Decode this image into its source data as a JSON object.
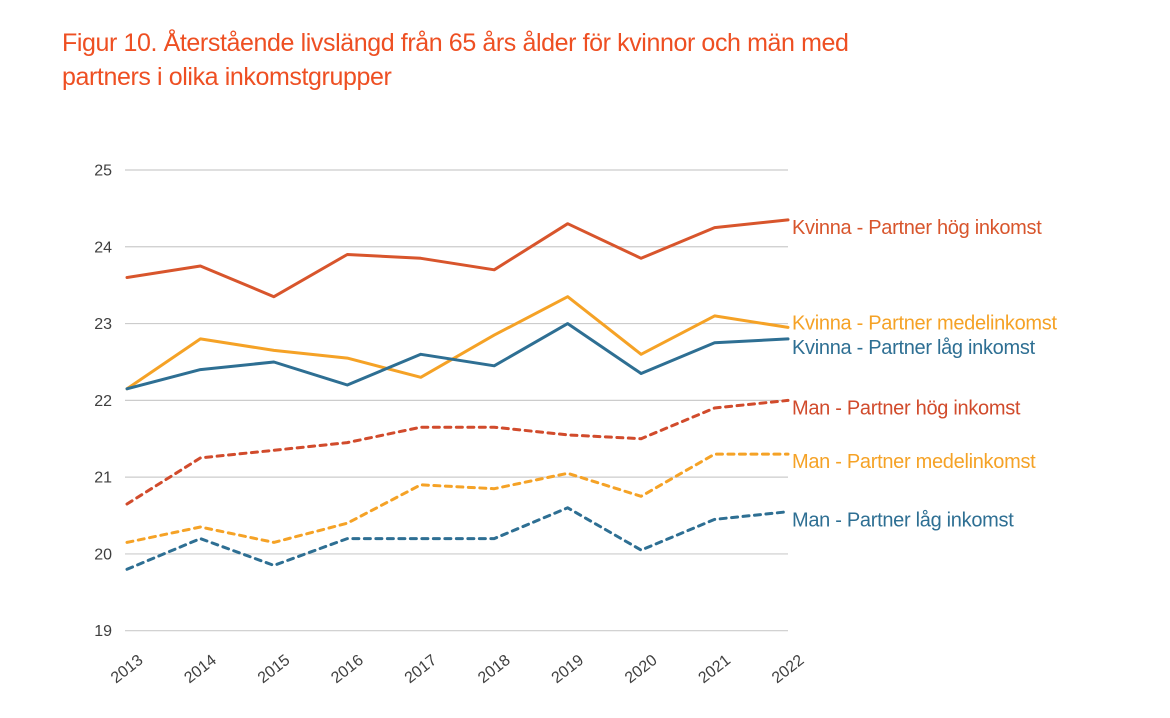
{
  "title": "Figur 10. Återstående livslängd från 65 års ålder för kvinnor och män med partners i olika inkomstgrupper",
  "title_color": "#ee4f22",
  "chart_data": {
    "type": "line",
    "title": "Figur 10. Återstående livslängd från 65 års ålder för kvinnor och män med partners i olika inkomstgrupper",
    "xlabel": "",
    "ylabel": "",
    "x": [
      2013,
      2014,
      2015,
      2016,
      2017,
      2018,
      2019,
      2020,
      2021,
      2022
    ],
    "ylim": [
      19,
      25
    ],
    "yticks": [
      19,
      20,
      21,
      22,
      23,
      24,
      25
    ],
    "grid": true,
    "legend_position": "right-of-line-ends",
    "gridline_color": "#cccccc",
    "tick_label_color": "#3f3f3f",
    "series": [
      {
        "name": "Kvinna - Partner hög inkomst",
        "color": "#d8552c",
        "line_style": "solid",
        "values": [
          23.6,
          23.75,
          23.35,
          23.9,
          23.85,
          23.7,
          24.3,
          23.85,
          24.25,
          24.35
        ]
      },
      {
        "name": "Kvinna - Partner medelinkomst",
        "color": "#f5a226",
        "line_style": "solid",
        "values": [
          22.15,
          22.8,
          22.65,
          22.55,
          22.3,
          22.85,
          23.35,
          22.6,
          23.1,
          22.95
        ]
      },
      {
        "name": "Kvinna - Partner låg inkomst",
        "color": "#2e6f93",
        "line_style": "solid",
        "values": [
          22.15,
          22.4,
          22.5,
          22.2,
          22.6,
          22.45,
          23.0,
          22.35,
          22.75,
          22.8
        ]
      },
      {
        "name": "Man - Partner hög inkomst",
        "color": "#d14b2c",
        "line_style": "dashed",
        "values": [
          20.65,
          21.25,
          21.35,
          21.45,
          21.65,
          21.65,
          21.55,
          21.5,
          21.9,
          22.0
        ]
      },
      {
        "name": "Man - Partner medelinkomst",
        "color": "#f5a226",
        "line_style": "dashed",
        "values": [
          20.15,
          20.35,
          20.15,
          20.4,
          20.9,
          20.85,
          21.05,
          20.75,
          21.3,
          21.3
        ]
      },
      {
        "name": "Man - Partner låg inkomst",
        "color": "#2e6f93",
        "line_style": "dashed",
        "values": [
          19.8,
          20.2,
          19.85,
          20.2,
          20.2,
          20.2,
          20.6,
          20.05,
          20.45,
          20.55
        ]
      }
    ]
  }
}
